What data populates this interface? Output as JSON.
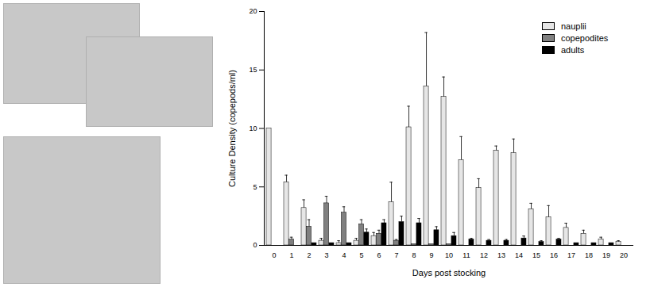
{
  "chart_data": {
    "type": "bar",
    "x_label": "Days post stocking",
    "y_label": "Culture Density (copepods/ml)",
    "categories": [
      "0",
      "1",
      "2",
      "3",
      "4",
      "5",
      "6",
      "7",
      "8",
      "9",
      "10",
      "11",
      "12",
      "13",
      "14",
      "15",
      "16",
      "17",
      "18",
      "19",
      "20"
    ],
    "series": [
      {
        "name": "nauplii",
        "color": "#e6e6e6",
        "values": [
          10,
          5.4,
          3.2,
          0.4,
          0.2,
          0.4,
          0.8,
          3.7,
          10.1,
          13.6,
          12.7,
          7.3,
          4.9,
          8.1,
          7.9,
          3.1,
          2.4,
          1.5,
          1.0,
          0.5,
          0.3
        ],
        "errors": [
          0,
          0.6,
          0.7,
          0.2,
          0.2,
          0.2,
          0.3,
          1.7,
          1.8,
          4.6,
          1.7,
          2.0,
          0.8,
          0.4,
          1.2,
          0.5,
          1.0,
          0.4,
          0.3,
          0.2,
          0.1
        ]
      },
      {
        "name": "copepodites",
        "color": "#808080",
        "values": [
          0,
          0.5,
          1.6,
          3.6,
          2.8,
          1.8,
          1.0,
          0.4,
          0.1,
          0.1,
          0.1,
          0,
          0,
          0,
          0,
          0,
          0,
          0,
          0,
          0,
          0
        ],
        "errors": [
          0,
          0.2,
          0.6,
          0.6,
          0.5,
          0.4,
          0.3,
          0.1,
          0,
          0,
          0,
          0,
          0,
          0,
          0,
          0,
          0,
          0,
          0,
          0,
          0
        ]
      },
      {
        "name": "adults",
        "color": "#000000",
        "values": [
          0,
          0,
          0.2,
          0.2,
          0.2,
          1.1,
          1.9,
          2.0,
          1.9,
          1.3,
          0.8,
          0.5,
          0.4,
          0.4,
          0.6,
          0.3,
          0.5,
          0.2,
          0.2,
          0.2,
          0
        ],
        "errors": [
          0,
          0,
          0,
          0,
          0,
          0.3,
          0.3,
          0.5,
          0.4,
          0.3,
          0.3,
          0.1,
          0.1,
          0.1,
          0.2,
          0.1,
          0.1,
          0,
          0,
          0,
          0
        ]
      }
    ],
    "ylim": [
      0,
      20
    ],
    "yticks": [
      0,
      5,
      10,
      15,
      20
    ],
    "legend": "top-right",
    "grid": false
  }
}
